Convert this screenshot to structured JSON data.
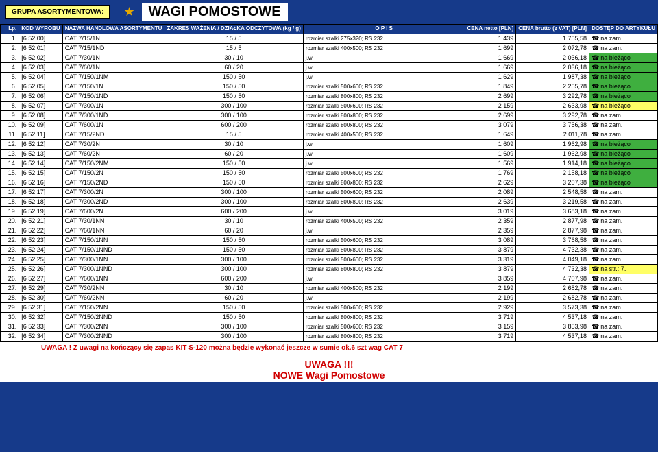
{
  "header": {
    "group_label": "GRUPA  ASORTYMENTOWA:",
    "title": "WAGI  POMOSTOWE"
  },
  "columns": {
    "lp": "Lp.",
    "kod": "KOD WYROBU",
    "nazwa": "NAZWA HANDLOWA ASORTYMENTU",
    "zakres": "ZAKRES WAŻENIA / DZIAŁKA ODCZYTOWA (kg / g)",
    "opis": "O P I S",
    "netto": "CENA netto [PLN]",
    "brutto": "CENA brutto (z VAT) [PLN]",
    "dostep": "DOSTĘP DO ARTYKUŁU"
  },
  "rows": [
    {
      "lp": "1.",
      "kod": "[6 52 00]",
      "nazwa": "CAT 7/15/1N",
      "zakres": "15 / 5",
      "opis": "rozmiar szalki 275x320; RS 232",
      "netto": "1 439",
      "brutto": "1 755,58",
      "dostep": "na zam.",
      "bg": ""
    },
    {
      "lp": "2.",
      "kod": "[6 52 01]",
      "nazwa": "CAT 7/15/1ND",
      "zakres": "15 / 5",
      "opis": "rozmiar szalki 400x500; RS 232",
      "netto": "1 699",
      "brutto": "2 072,78",
      "dostep": "na zam.",
      "bg": ""
    },
    {
      "lp": "3.",
      "kod": "[6 52 02]",
      "nazwa": "CAT 7/30/1N",
      "zakres": "30 / 10",
      "opis": "j.w.",
      "netto": "1 669",
      "brutto": "2 036,18",
      "dostep": "na bieżąco",
      "bg": "green"
    },
    {
      "lp": "4.",
      "kod": "[6 52 03]",
      "nazwa": "CAT 7/60/1N",
      "zakres": "60 / 20",
      "opis": "j.w.",
      "netto": "1 669",
      "brutto": "2 036,18",
      "dostep": "na bieżąco",
      "bg": "green"
    },
    {
      "lp": "5.",
      "kod": "[6 52 04]",
      "nazwa": "CAT 7/150/1NM",
      "zakres": "150 / 50",
      "opis": "j.w.",
      "netto": "1 629",
      "brutto": "1 987,38",
      "dostep": "na bieżąco",
      "bg": "green"
    },
    {
      "lp": "6.",
      "kod": "[6 52 05]",
      "nazwa": "CAT 7/150/1N",
      "zakres": "150 / 50",
      "opis": "rozmiar szalki 500x600; RS 232",
      "netto": "1 849",
      "brutto": "2 255,78",
      "dostep": "na bieżąco",
      "bg": "green"
    },
    {
      "lp": "7.",
      "kod": "[6 52 06]",
      "nazwa": "CAT 7/150/1ND",
      "zakres": "150 / 50",
      "opis": "rozmiar szalki 800x800; RS 232",
      "netto": "2 699",
      "brutto": "3 292,78",
      "dostep": "na bieżąco",
      "bg": "green"
    },
    {
      "lp": "8.",
      "kod": "[6 52 07]",
      "nazwa": "CAT 7/300/1N",
      "zakres": "300 / 100",
      "opis": "rozmiar szalki 500x600; RS 232",
      "netto": "2 159",
      "brutto": "2 633,98",
      "dostep": "na bieżąco",
      "bg": "yellow"
    },
    {
      "lp": "9.",
      "kod": "[6 52 08]",
      "nazwa": "CAT 7/300/1ND",
      "zakres": "300 / 100",
      "opis": "rozmiar szalki 800x800; RS 232",
      "netto": "2 699",
      "brutto": "3 292,78",
      "dostep": "na zam.",
      "bg": ""
    },
    {
      "lp": "10.",
      "kod": "[6 52 09]",
      "nazwa": "CAT 7/600/1N",
      "zakres": "600 / 200",
      "opis": "rozmiar szalki 800x800; RS 232",
      "netto": "3 079",
      "brutto": "3 756,38",
      "dostep": "na zam.",
      "bg": ""
    },
    {
      "lp": "11.",
      "kod": "[6 52 11]",
      "nazwa": "CAT 7/15/2ND",
      "zakres": "15 / 5",
      "opis": "rozmiar szalki 400x500; RS 232",
      "netto": "1 649",
      "brutto": "2 011,78",
      "dostep": "na zam.",
      "bg": ""
    },
    {
      "lp": "12.",
      "kod": "[6 52 12]",
      "nazwa": "CAT 7/30/2N",
      "zakres": "30 / 10",
      "opis": "j.w.",
      "netto": "1 609",
      "brutto": "1 962,98",
      "dostep": "na bieżąco",
      "bg": "green"
    },
    {
      "lp": "13.",
      "kod": "[6 52 13]",
      "nazwa": "CAT 7/60/2N",
      "zakres": "60 / 20",
      "opis": "j.w.",
      "netto": "1 609",
      "brutto": "1 962,98",
      "dostep": "na bieżąco",
      "bg": "green"
    },
    {
      "lp": "14.",
      "kod": "[6 52 14]",
      "nazwa": "CAT 7/150/2NM",
      "zakres": "150 / 50",
      "opis": "j.w.",
      "netto": "1 569",
      "brutto": "1 914,18",
      "dostep": "na bieżąco",
      "bg": "green"
    },
    {
      "lp": "15.",
      "kod": "[6 52 15]",
      "nazwa": "CAT 7/150/2N",
      "zakres": "150 / 50",
      "opis": "rozmiar szalki 500x600; RS 232",
      "netto": "1 769",
      "brutto": "2 158,18",
      "dostep": "na bieżąco",
      "bg": "green"
    },
    {
      "lp": "16.",
      "kod": "[6 52 16]",
      "nazwa": "CAT 7/150/2ND",
      "zakres": "150 / 50",
      "opis": "rozmiar szalki 800x800; RS 232",
      "netto": "2 629",
      "brutto": "3 207,38",
      "dostep": "na bieżąco",
      "bg": "green"
    },
    {
      "lp": "17.",
      "kod": "[6 52 17]",
      "nazwa": "CAT 7/300/2N",
      "zakres": "300 / 100",
      "opis": "rozmiar szalki 500x600; RS 232",
      "netto": "2 089",
      "brutto": "2 548,58",
      "dostep": "na zam.",
      "bg": ""
    },
    {
      "lp": "18.",
      "kod": "[6 52 18]",
      "nazwa": "CAT 7/300/2ND",
      "zakres": "300 / 100",
      "opis": "rozmiar szalki 800x800; RS 232",
      "netto": "2 639",
      "brutto": "3 219,58",
      "dostep": "na zam.",
      "bg": ""
    },
    {
      "lp": "19.",
      "kod": "[6 52 19]",
      "nazwa": "CAT 7/600/2N",
      "zakres": "600 / 200",
      "opis": "j.w.",
      "netto": "3 019",
      "brutto": "3 683,18",
      "dostep": "na zam.",
      "bg": ""
    },
    {
      "lp": "20.",
      "kod": "[6 52 21]",
      "nazwa": "CAT 7/30/1NN",
      "zakres": "30 / 10",
      "opis": "rozmiar szalki 400x500; RS 232",
      "netto": "2 359",
      "brutto": "2 877,98",
      "dostep": "na zam.",
      "bg": ""
    },
    {
      "lp": "21.",
      "kod": "[6 52 22]",
      "nazwa": "CAT 7/60/1NN",
      "zakres": "60 / 20",
      "opis": "j.w.",
      "netto": "2 359",
      "brutto": "2 877,98",
      "dostep": "na zam.",
      "bg": ""
    },
    {
      "lp": "22.",
      "kod": "[6 52 23]",
      "nazwa": "CAT 7/150/1NN",
      "zakres": "150 / 50",
      "opis": "rozmiar szalki 500x600; RS 232",
      "netto": "3 089",
      "brutto": "3 768,58",
      "dostep": "na zam.",
      "bg": ""
    },
    {
      "lp": "23.",
      "kod": "[6 52 24]",
      "nazwa": "CAT 7/150/1NND",
      "zakres": "150 / 50",
      "opis": "rozmiar szalki 800x800; RS 232",
      "netto": "3 879",
      "brutto": "4 732,38",
      "dostep": "na zam.",
      "bg": ""
    },
    {
      "lp": "24.",
      "kod": "[6 52 25]",
      "nazwa": "CAT 7/300/1NN",
      "zakres": "300 / 100",
      "opis": "rozmiar szalki 500x600; RS 232",
      "netto": "3 319",
      "brutto": "4 049,18",
      "dostep": "na zam.",
      "bg": ""
    },
    {
      "lp": "25.",
      "kod": "[6 52 26]",
      "nazwa": "CAT 7/300/1NND",
      "zakres": "300 / 100",
      "opis": "rozmiar szalki 800x800; RS 232",
      "netto": "3 879",
      "brutto": "4 732,38",
      "dostep": "na str.: 7.",
      "bg": "yellow"
    },
    {
      "lp": "26.",
      "kod": "[6 52 27]",
      "nazwa": "CAT 7/600/1NN",
      "zakres": "600 / 200",
      "opis": "j.w.",
      "netto": "3 859",
      "brutto": "4 707,98",
      "dostep": "na zam.",
      "bg": ""
    },
    {
      "lp": "27.",
      "kod": "[6 52 29]",
      "nazwa": "CAT 7/30/2NN",
      "zakres": "30 / 10",
      "opis": "rozmiar szalki 400x500; RS 232",
      "netto": "2 199",
      "brutto": "2 682,78",
      "dostep": "na zam.",
      "bg": ""
    },
    {
      "lp": "28.",
      "kod": "[6 52 30]",
      "nazwa": "CAT 7/60/2NN",
      "zakres": "60 / 20",
      "opis": "j.w.",
      "netto": "2 199",
      "brutto": "2 682,78",
      "dostep": "na zam.",
      "bg": ""
    },
    {
      "lp": "29.",
      "kod": "[6 52 31]",
      "nazwa": "CAT 7/150/2NN",
      "zakres": "150 / 50",
      "opis": "rozmiar szalki 500x600; RS 232",
      "netto": "2 929",
      "brutto": "3 573,38",
      "dostep": "na zam.",
      "bg": ""
    },
    {
      "lp": "30.",
      "kod": "[6 52 32]",
      "nazwa": "CAT 7/150/2NND",
      "zakres": "150 / 50",
      "opis": "rozmiar szalki 800x800; RS 232",
      "netto": "3 719",
      "brutto": "4 537,18",
      "dostep": "na zam.",
      "bg": ""
    },
    {
      "lp": "31.",
      "kod": "[6 52 33]",
      "nazwa": "CAT 7/300/2NN",
      "zakres": "300 / 100",
      "opis": "rozmiar szalki 500x600; RS 232",
      "netto": "3 159",
      "brutto": "3 853,98",
      "dostep": "na zam.",
      "bg": ""
    },
    {
      "lp": "32.",
      "kod": "[6 52 34]",
      "nazwa": "CAT 7/300/2NND",
      "zakres": "300 / 100",
      "opis": "rozmiar szalki 800x800; RS 232",
      "netto": "3 719",
      "brutto": "4 537,18",
      "dostep": "na zam.",
      "bg": ""
    }
  ],
  "footer": {
    "note": "UWAGA ! Z uwagi na kończący się zapas KIT S-120 można będzie wykonać jeszcze w sumie ok.6 szt wag CAT 7",
    "big1": "UWAGA !!!",
    "big2": "NOWE Wagi Pomostowe"
  },
  "colors": {
    "header_bg": "#163a8a",
    "green": "#3faf3f",
    "yellow": "#ffff66",
    "red_text": "#d00000"
  }
}
